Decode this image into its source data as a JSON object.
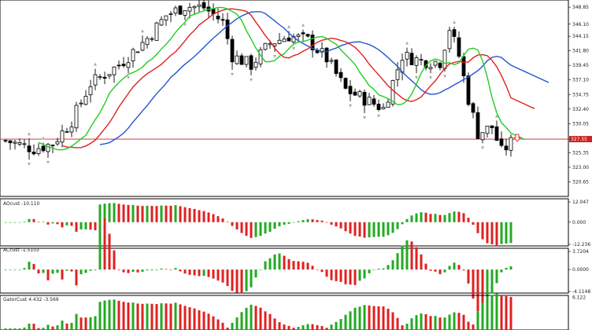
{
  "chart_data": [
    {
      "type": "candlestick",
      "title": "",
      "y_axis_ticks": [
        "348.85",
        "346.10",
        "344.15",
        "341.80",
        "339.45",
        "337.10",
        "334.75",
        "332.40",
        "330.05",
        "327.55",
        "325.35",
        "323.00",
        "320.65"
      ],
      "ylim": [
        318.3,
        350.0
      ],
      "current_price_label": "327.55",
      "x_count": 108,
      "candles": [],
      "moving_averages": [
        {
          "color": "#2255cc",
          "period": "slow"
        },
        {
          "color": "#e02020",
          "period": "medium"
        },
        {
          "color": "#22cc22",
          "period": "fast"
        }
      ],
      "fractal_arrows": "up/down markers at local extremes",
      "sell_signal_arrow": "red outline down arrow at right end"
    },
    {
      "type": "bar",
      "title": "AOcust -10.110",
      "y_axis_ticks": [
        "12.047",
        "0.000",
        "-12.236"
      ],
      "ylim": [
        -12.236,
        12.047
      ]
    },
    {
      "type": "bar",
      "title": "ACcust -1.5103",
      "y_axis_ticks": [
        "3.7204",
        "0.0000",
        "-4.1148"
      ],
      "ylim": [
        -4.1148,
        3.7204
      ]
    },
    {
      "type": "bar",
      "title": "GatorCust 4.432 -3.569",
      "y_axis_ticks": [
        "6.122"
      ],
      "ylim": [
        0,
        6.5
      ]
    }
  ],
  "colors": {
    "up": "#22aa22",
    "down": "#e02020",
    "price_line": "#cc2222",
    "price_label_bg": "#cc2222",
    "grid": "#cccccc",
    "frame": "#000000"
  }
}
